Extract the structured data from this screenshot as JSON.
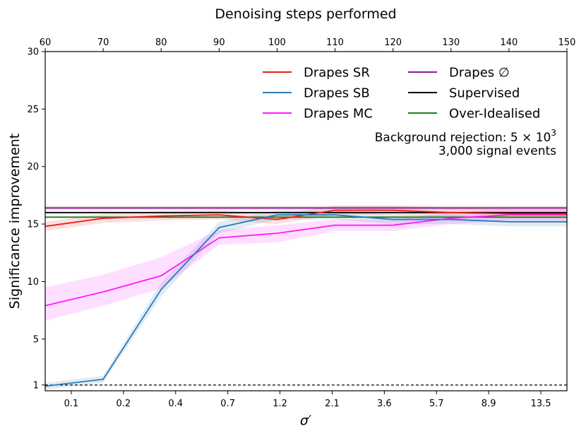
{
  "chart_data": {
    "type": "line",
    "xlabel": "σ′",
    "ylabel": "Significance improvement",
    "top_xlabel": "Denoising steps performed",
    "x_ticks": [
      "0.1",
      "0.2",
      "0.4",
      "0.7",
      "1.2",
      "2.1",
      "3.6",
      "5.7",
      "8.9",
      "13.5"
    ],
    "top_x_ticks": [
      "60",
      "70",
      "80",
      "90",
      "100",
      "110",
      "120",
      "130",
      "140",
      "150"
    ],
    "y_ticks": [
      "1",
      "5",
      "10",
      "15",
      "20",
      "25",
      "30"
    ],
    "ylim": [
      0.5,
      30
    ],
    "legend_position": "top-right",
    "annotation_line1_prefix": "Background rejection: 5 × 10",
    "annotation_line1_sup": "3",
    "annotation_line2": "3,000 signal events",
    "reference_line": {
      "y": 1,
      "style": "dashed",
      "color": "#000000"
    },
    "series": [
      {
        "name": "Drapes SR",
        "color": "#e8201c",
        "x": [
          60,
          70,
          80,
          90,
          100,
          110,
          120,
          130,
          140,
          150
        ],
        "values": [
          14.8,
          15.5,
          15.7,
          15.8,
          15.4,
          16.2,
          16.2,
          16.0,
          15.9,
          15.9
        ],
        "lower": [
          14.4,
          15.1,
          15.3,
          15.4,
          15.0,
          15.8,
          15.8,
          15.6,
          15.5,
          15.5
        ],
        "upper": [
          15.2,
          15.9,
          16.1,
          16.2,
          15.8,
          16.6,
          16.6,
          16.4,
          16.3,
          16.3
        ]
      },
      {
        "name": "Drapes SB",
        "color": "#2c7bb6",
        "x": [
          60,
          70,
          80,
          90,
          100,
          110,
          120,
          130,
          140,
          150
        ],
        "values": [
          0.9,
          1.5,
          9.3,
          14.7,
          15.8,
          15.8,
          15.4,
          15.4,
          15.2,
          15.2
        ],
        "lower": [
          0.6,
          1.2,
          8.7,
          14.2,
          15.4,
          15.4,
          15.0,
          15.0,
          14.8,
          14.8
        ],
        "upper": [
          1.2,
          1.8,
          9.9,
          15.2,
          16.2,
          16.2,
          15.8,
          15.8,
          15.6,
          15.6
        ]
      },
      {
        "name": "Drapes MC",
        "color": "#ff19ff",
        "x": [
          60,
          70,
          80,
          90,
          100,
          110,
          120,
          130,
          140,
          150
        ],
        "values": [
          7.9,
          9.1,
          10.5,
          13.8,
          14.2,
          14.9,
          14.9,
          15.5,
          15.8,
          15.8
        ],
        "lower": [
          6.6,
          7.9,
          9.4,
          13.2,
          13.4,
          14.4,
          14.4,
          15.0,
          15.3,
          15.3
        ],
        "upper": [
          9.5,
          10.6,
          12.1,
          14.5,
          14.9,
          15.4,
          15.4,
          16.0,
          16.3,
          16.3
        ]
      },
      {
        "name": "Drapes ∅",
        "color": "#8b1a89",
        "x": [
          60,
          150
        ],
        "values": [
          16.4,
          16.4
        ],
        "lower": [
          16.2,
          16.2
        ],
        "upper": [
          16.6,
          16.6
        ]
      },
      {
        "name": "Supervised",
        "color": "#000000",
        "x": [
          60,
          150
        ],
        "values": [
          16.0,
          16.0
        ]
      },
      {
        "name": "Over-Idealised",
        "color": "#1f7a1f",
        "x": [
          60,
          150
        ],
        "values": [
          15.6,
          15.6
        ]
      }
    ]
  }
}
